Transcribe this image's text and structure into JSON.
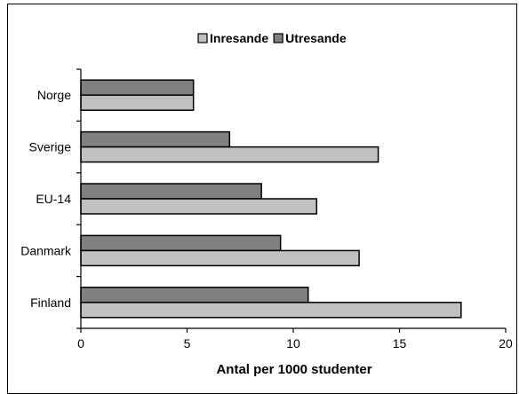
{
  "chart_data": {
    "type": "bar",
    "orientation": "horizontal",
    "title": "",
    "xlabel": "Antal per 1000 studenter",
    "ylabel": "",
    "categories": [
      "Norge",
      "Sverige",
      "EU-14",
      "Danmark",
      "Finland"
    ],
    "series": [
      {
        "name": "Inresande",
        "color": "#c0c0c0",
        "values": [
          5.3,
          14.0,
          11.1,
          13.1,
          17.9
        ]
      },
      {
        "name": "Utresande",
        "color": "#808080",
        "values": [
          5.3,
          7.0,
          8.5,
          9.4,
          10.7
        ]
      }
    ],
    "xlim": [
      0,
      20
    ],
    "xticks": [
      "0",
      "5",
      "10",
      "15",
      "20"
    ],
    "grid": false,
    "legend": "top"
  }
}
